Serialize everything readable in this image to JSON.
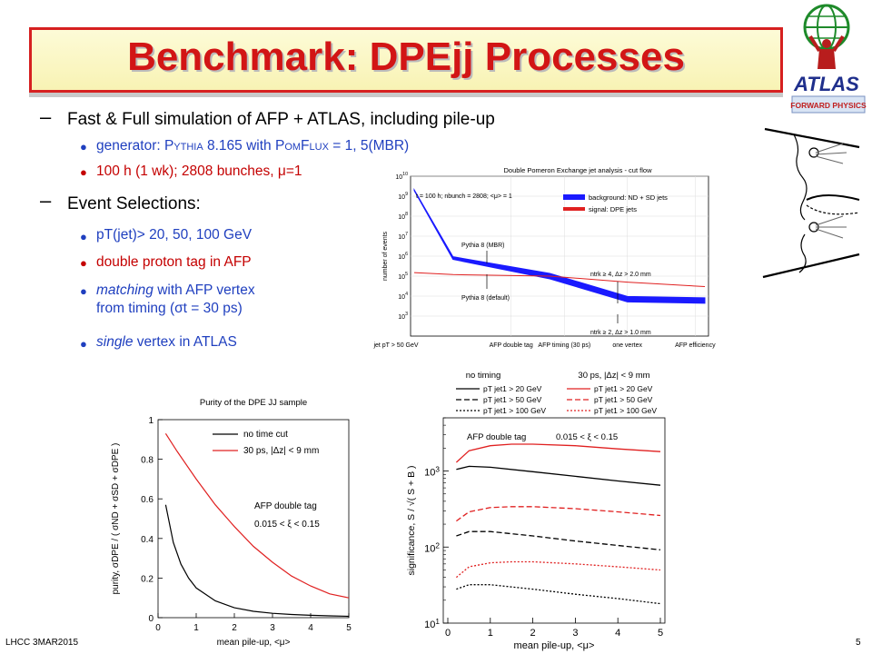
{
  "slide": {
    "title": "Benchmark: DPEjj Processes",
    "footer_left": "LHCC 3MAR2015",
    "page_number": "5"
  },
  "bullets": {
    "item1": "Fast & Full simulation of AFP + ATLAS, including pile-up",
    "sub1a_pre": "generator: ",
    "sub1a_pythia": "Pythia",
    "sub1a_mid": " 8.165 with ",
    "sub1a_pomflux": "PomFlux",
    "sub1a_post": " = 1, 5(MBR)",
    "sub1b": "100 h (1 wk); 2808 bunches, μ=1",
    "item2": "Event Selections:",
    "sub2a": "pT(jet)> 20, 50, 100 GeV",
    "sub2b": "double proton tag in AFP",
    "sub2c_em": "matching",
    "sub2c_rest": " with AFP vertex",
    "sub2c_line2": "from timing (σt = 30 ps)",
    "sub2d_em": "single",
    "sub2d_rest": " vertex in ATLAS"
  },
  "logo": {
    "text": "ATLAS",
    "subtext": "FORWARD PHYSICS"
  },
  "chart_data": [
    {
      "type": "line",
      "title": "Double Pomeron Exchange jet analysis - cut flow",
      "ylabel": "number of events",
      "yscale": "log",
      "ylim": [
        100,
        10000000000
      ],
      "yticks": [
        "10^3",
        "10^4",
        "10^5",
        "10^6",
        "10^7",
        "10^8",
        "10^9",
        "10^10"
      ],
      "categories": [
        "jet pT > 50 GeV",
        "AFP double tag",
        "AFP timing (30 ps)",
        "one vertex",
        "AFP efficiency"
      ],
      "legend": [
        "background: ND + SD jets",
        "signal: DPE jets"
      ],
      "legend_position": "top-right",
      "annotations": [
        "t = 100 h; nbunch = 2808; <μ> = 1",
        "Pythia 8 (MBR)",
        "Pythia 8 (default)",
        "ntrk ≥ 4, Δz > 2.0 mm",
        "ntrk ≥ 2, Δz > 1.0 mm"
      ],
      "series": [
        {
          "name": "background: ND + SD jets",
          "color": "#1a1aff",
          "x": [
            0,
            0.4,
            1.4,
            2.2,
            3
          ],
          "values": [
            2000000000,
            800000,
            100000,
            7000,
            6000
          ]
        },
        {
          "name": "signal: DPE jets",
          "color": "#e02020",
          "x": [
            0,
            0.4,
            1.4,
            2.2,
            3
          ],
          "values": [
            150000,
            120000,
            100000,
            50000,
            30000
          ]
        }
      ]
    },
    {
      "type": "line",
      "title": "Purity of the DPE JJ sample",
      "xlabel": "mean pile-up, <μ>",
      "ylabel": "purity, σDPE / ( σND + σSD + σDPE )",
      "xlim": [
        0,
        5
      ],
      "ylim": [
        0,
        1
      ],
      "xticks": [
        "0",
        "1",
        "2",
        "3",
        "4",
        "5"
      ],
      "yticks": [
        "0",
        "0.2",
        "0.4",
        "0.6",
        "0.8",
        "1"
      ],
      "legend": [
        "no time cut",
        "30 ps, |Δz| < 9 mm"
      ],
      "legend_position": "top-right",
      "annotations": [
        "AFP double tag",
        "0.015 < ξ < 0.15"
      ],
      "series": [
        {
          "name": "no time cut",
          "color": "#000000",
          "x": [
            0.2,
            0.4,
            0.6,
            0.8,
            1,
            1.5,
            2,
            2.5,
            3,
            3.5,
            4,
            4.5,
            5
          ],
          "values": [
            0.57,
            0.38,
            0.27,
            0.2,
            0.15,
            0.085,
            0.05,
            0.032,
            0.022,
            0.016,
            0.012,
            0.009,
            0.007
          ]
        },
        {
          "name": "30 ps, |Δz| < 9 mm",
          "color": "#e02020",
          "x": [
            0.2,
            0.5,
            1,
            1.5,
            2,
            2.5,
            3,
            3.5,
            4,
            4.5,
            5
          ],
          "values": [
            0.93,
            0.84,
            0.7,
            0.57,
            0.46,
            0.36,
            0.28,
            0.21,
            0.16,
            0.12,
            0.1
          ]
        }
      ]
    },
    {
      "type": "line",
      "xlabel": "mean pile-up, <μ>",
      "ylabel": "significance, S / √( S + B )",
      "yscale": "log",
      "xlim": [
        0,
        5
      ],
      "ylim": [
        10,
        5000
      ],
      "xticks": [
        "0",
        "1",
        "2",
        "3",
        "4",
        "5"
      ],
      "yticks": [
        "10^1",
        "10^2",
        "10^3"
      ],
      "legend_titles": [
        "no timing",
        "30 ps, |Δz| < 9 mm"
      ],
      "legend": [
        "pT jet1 > 20 GeV",
        "pT jet1 > 50 GeV",
        "pT jet1 > 100 GeV"
      ],
      "legend_position": "top",
      "annotations": [
        "AFP double tag",
        "0.015 < ξ < 0.15"
      ],
      "series": [
        {
          "name": "no timing pT jet1 > 20 GeV",
          "color": "#000000",
          "dash": "solid",
          "x": [
            0.2,
            0.5,
            1,
            2,
            3,
            4,
            5
          ],
          "values": [
            1050,
            1150,
            1120,
            980,
            850,
            740,
            650
          ]
        },
        {
          "name": "no timing pT jet1 > 50 GeV",
          "color": "#000000",
          "dash": "dashed",
          "x": [
            0.2,
            0.5,
            1,
            2,
            3,
            4,
            5
          ],
          "values": [
            140,
            160,
            160,
            140,
            120,
            105,
            92
          ]
        },
        {
          "name": "no timing pT jet1 > 100 GeV",
          "color": "#000000",
          "dash": "dotted",
          "x": [
            0.2,
            0.5,
            1,
            2,
            3,
            4,
            5
          ],
          "values": [
            28,
            32,
            32,
            28,
            24,
            21,
            18
          ]
        },
        {
          "name": "30 ps pT jet1 > 20 GeV",
          "color": "#e02020",
          "dash": "solid",
          "x": [
            0.2,
            0.5,
            1,
            1.5,
            2,
            3,
            4,
            5
          ],
          "values": [
            1300,
            1850,
            2150,
            2250,
            2250,
            2150,
            1950,
            1800
          ]
        },
        {
          "name": "30 ps pT jet1 > 50 GeV",
          "color": "#e02020",
          "dash": "dashed",
          "x": [
            0.2,
            0.5,
            1,
            1.5,
            2,
            3,
            4,
            5
          ],
          "values": [
            220,
            290,
            330,
            340,
            340,
            320,
            290,
            260
          ]
        },
        {
          "name": "30 ps pT jet1 > 100 GeV",
          "color": "#e02020",
          "dash": "dotted",
          "x": [
            0.2,
            0.5,
            1,
            1.5,
            2,
            3,
            4,
            5
          ],
          "values": [
            40,
            55,
            62,
            64,
            64,
            60,
            55,
            50
          ]
        }
      ]
    }
  ]
}
